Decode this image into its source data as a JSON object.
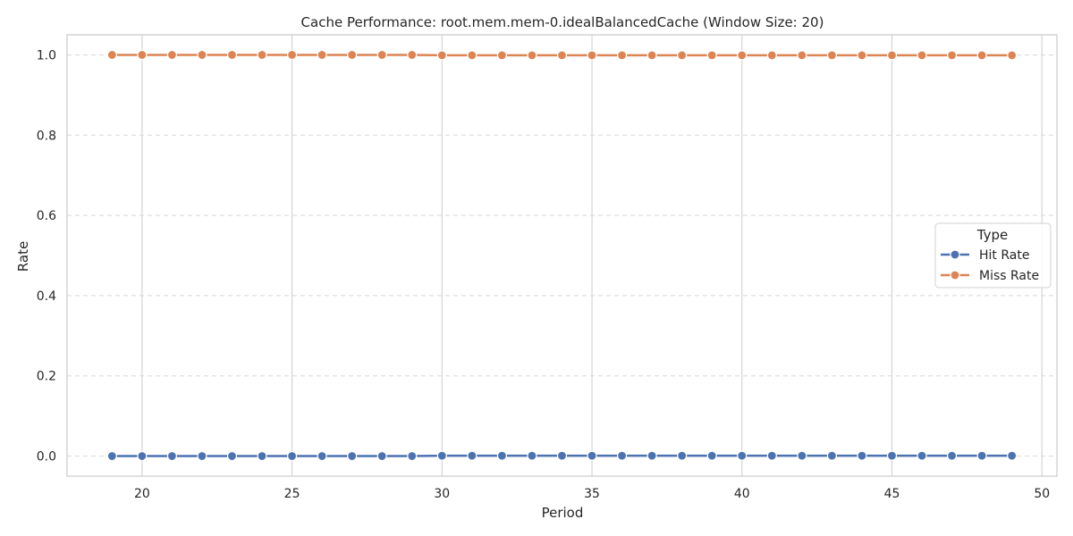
{
  "chart_data": {
    "type": "line",
    "title": "Cache Performance: root.mem.mem-0.idealBalancedCache (Window Size: 20)",
    "xlabel": "Period",
    "ylabel": "Rate",
    "xlim": [
      17.5,
      50.5
    ],
    "ylim": [
      -0.05,
      1.05
    ],
    "xticks": [
      20,
      25,
      30,
      35,
      40,
      45,
      50
    ],
    "yticks": [
      0.0,
      0.2,
      0.4,
      0.6,
      0.8,
      1.0
    ],
    "xtick_labels": [
      "20",
      "25",
      "30",
      "35",
      "40",
      "45",
      "50"
    ],
    "ytick_labels": [
      "0.0",
      "0.2",
      "0.4",
      "0.6",
      "0.8",
      "1.0"
    ],
    "grid": true,
    "legend": {
      "title": "Type",
      "placement": "center-right"
    },
    "x": [
      19,
      20,
      21,
      22,
      23,
      24,
      25,
      26,
      27,
      28,
      29,
      30,
      31,
      32,
      33,
      34,
      35,
      36,
      37,
      38,
      39,
      40,
      41,
      42,
      43,
      44,
      45,
      46,
      47,
      48,
      49
    ],
    "series": [
      {
        "name": "Hit Rate",
        "color": "#4c72b0",
        "values": [
          0.0,
          0.0,
          0.0,
          0.0,
          0.0,
          0.0,
          0.0,
          0.0,
          0.0,
          0.0,
          0.0,
          0.001,
          0.001,
          0.001,
          0.001,
          0.001,
          0.001,
          0.001,
          0.001,
          0.001,
          0.001,
          0.001,
          0.001,
          0.001,
          0.001,
          0.001,
          0.001,
          0.001,
          0.001,
          0.001,
          0.001
        ]
      },
      {
        "name": "Miss Rate",
        "color": "#dd8452",
        "values": [
          1.0,
          1.0,
          1.0,
          1.0,
          1.0,
          1.0,
          1.0,
          1.0,
          1.0,
          1.0,
          1.0,
          0.999,
          0.999,
          0.999,
          0.999,
          0.999,
          0.999,
          0.999,
          0.999,
          0.999,
          0.999,
          0.999,
          0.999,
          0.999,
          0.999,
          0.999,
          0.999,
          0.999,
          0.999,
          0.999,
          0.999
        ]
      }
    ]
  }
}
